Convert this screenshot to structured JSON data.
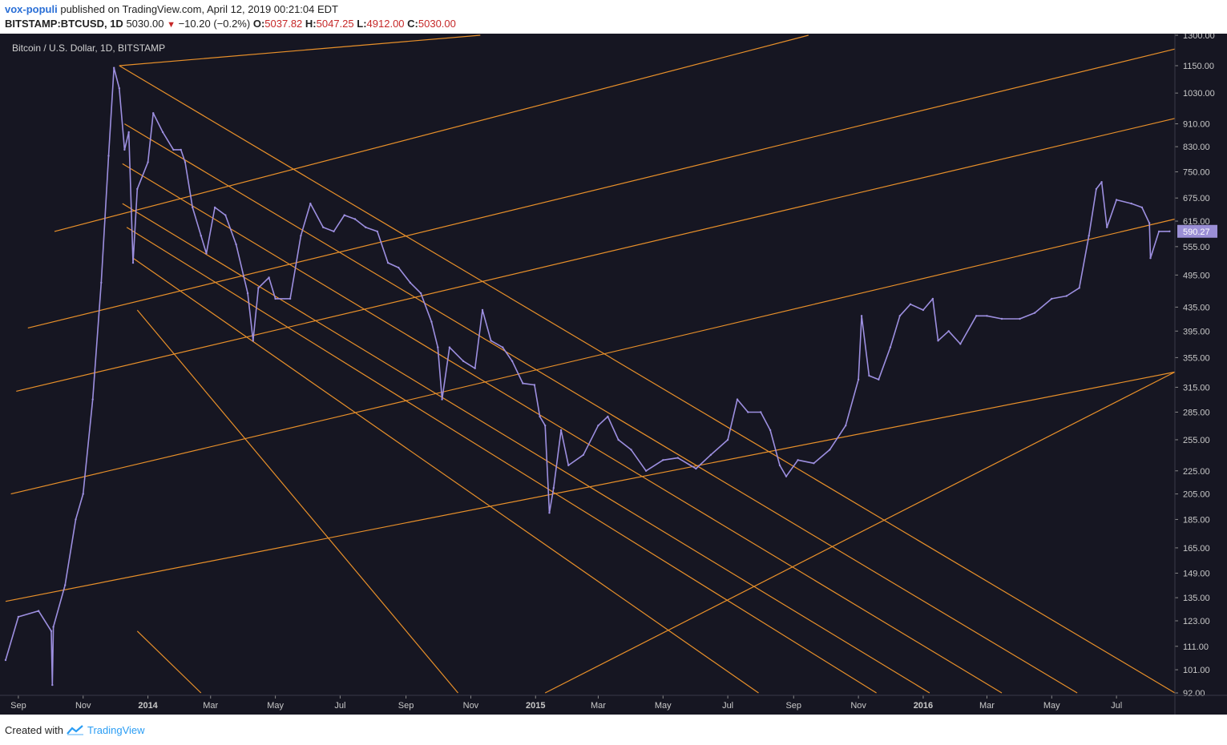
{
  "header": {
    "author": "vox-populi",
    "published_text": "published on TradingView.com, April 12, 2019 00:21:04 EDT",
    "symbol": "BITSTAMP:BTCUSD, 1D",
    "last": "5030.00",
    "change": "−10.20 (−0.2%)",
    "o_label": "O:",
    "o_value": "5037.82",
    "h_label": "H:",
    "h_value": "5047.25",
    "l_label": "L:",
    "l_value": "4912.00",
    "c_label": "C:",
    "c_value": "5030.00"
  },
  "footer": {
    "created_with": "Created with",
    "brand": "TradingView"
  },
  "colors": {
    "background": "#161622",
    "candle": "#9d8fe0",
    "trendline": "#e8902a",
    "price_tag": "#9b8fd6",
    "axis_text": "#c8c8c8"
  },
  "chart_data": {
    "type": "line",
    "title": "Bitcoin / U.S. Dollar, 1D, BITSTAMP",
    "x_tick_labels": [
      "Sep",
      "Nov",
      "2014",
      "Mar",
      "May",
      "Jul",
      "Sep",
      "Nov",
      "2015",
      "Mar",
      "May",
      "Jul",
      "Sep",
      "Nov",
      "2016",
      "Mar",
      "May",
      "Jul"
    ],
    "x_tick_dates": [
      "2013-09-01",
      "2013-11-01",
      "2014-01-01",
      "2014-03-01",
      "2014-05-01",
      "2014-07-01",
      "2014-09-01",
      "2014-11-01",
      "2015-01-01",
      "2015-03-01",
      "2015-05-01",
      "2015-07-01",
      "2015-09-01",
      "2015-11-01",
      "2016-01-01",
      "2016-03-01",
      "2016-05-01",
      "2016-07-01"
    ],
    "y_scale": "log",
    "y_tick_labels": [
      "1300.00",
      "1150.00",
      "1030.00",
      "910.00",
      "830.00",
      "750.00",
      "675.00",
      "615.00",
      "555.00",
      "495.00",
      "435.00",
      "395.00",
      "355.00",
      "315.00",
      "285.00",
      "255.00",
      "225.00",
      "205.00",
      "185.00",
      "165.00",
      "149.00",
      "135.00",
      "123.00",
      "111.00",
      "101.00",
      "92.00"
    ],
    "ylim": [
      92,
      1300
    ],
    "xlim": [
      "2013-08-20",
      "2016-08-25"
    ],
    "last_price_label": "590.27",
    "grid": false,
    "series": [
      {
        "points": [
          [
            "2013-08-20",
            105
          ],
          [
            "2013-09-01",
            125
          ],
          [
            "2013-09-20",
            128
          ],
          [
            "2013-10-02",
            118
          ],
          [
            "2013-10-03",
            95
          ],
          [
            "2013-10-04",
            120
          ],
          [
            "2013-10-15",
            142
          ],
          [
            "2013-10-25",
            185
          ],
          [
            "2013-11-01",
            205
          ],
          [
            "2013-11-10",
            300
          ],
          [
            "2013-11-18",
            480
          ],
          [
            "2013-11-25",
            800
          ],
          [
            "2013-11-30",
            1140
          ],
          [
            "2013-12-05",
            1050
          ],
          [
            "2013-12-10",
            820
          ],
          [
            "2013-12-14",
            880
          ],
          [
            "2013-12-18",
            520
          ],
          [
            "2013-12-22",
            700
          ],
          [
            "2014-01-01",
            780
          ],
          [
            "2014-01-06",
            950
          ],
          [
            "2014-01-15",
            880
          ],
          [
            "2014-01-25",
            820
          ],
          [
            "2014-02-01",
            820
          ],
          [
            "2014-02-05",
            780
          ],
          [
            "2014-02-12",
            650
          ],
          [
            "2014-02-20",
            580
          ],
          [
            "2014-02-25",
            540
          ],
          [
            "2014-03-05",
            650
          ],
          [
            "2014-03-15",
            630
          ],
          [
            "2014-03-25",
            560
          ],
          [
            "2014-04-05",
            460
          ],
          [
            "2014-04-10",
            380
          ],
          [
            "2014-04-15",
            470
          ],
          [
            "2014-04-25",
            490
          ],
          [
            "2014-05-01",
            450
          ],
          [
            "2014-05-15",
            450
          ],
          [
            "2014-05-25",
            580
          ],
          [
            "2014-06-03",
            660
          ],
          [
            "2014-06-15",
            600
          ],
          [
            "2014-06-25",
            590
          ],
          [
            "2014-07-05",
            630
          ],
          [
            "2014-07-15",
            620
          ],
          [
            "2014-07-25",
            600
          ],
          [
            "2014-08-05",
            590
          ],
          [
            "2014-08-15",
            520
          ],
          [
            "2014-08-25",
            510
          ],
          [
            "2014-09-05",
            480
          ],
          [
            "2014-09-15",
            460
          ],
          [
            "2014-09-25",
            410
          ],
          [
            "2014-10-01",
            370
          ],
          [
            "2014-10-05",
            300
          ],
          [
            "2014-10-12",
            370
          ],
          [
            "2014-10-25",
            350
          ],
          [
            "2014-11-05",
            340
          ],
          [
            "2014-11-12",
            430
          ],
          [
            "2014-11-20",
            380
          ],
          [
            "2014-12-01",
            370
          ],
          [
            "2014-12-10",
            350
          ],
          [
            "2014-12-20",
            320
          ],
          [
            "2014-12-31",
            318
          ],
          [
            "2015-01-05",
            280
          ],
          [
            "2015-01-10",
            270
          ],
          [
            "2015-01-14",
            190
          ],
          [
            "2015-01-18",
            210
          ],
          [
            "2015-01-25",
            265
          ],
          [
            "2015-02-01",
            230
          ],
          [
            "2015-02-15",
            240
          ],
          [
            "2015-03-01",
            270
          ],
          [
            "2015-03-10",
            280
          ],
          [
            "2015-03-20",
            255
          ],
          [
            "2015-04-01",
            245
          ],
          [
            "2015-04-15",
            225
          ],
          [
            "2015-05-01",
            235
          ],
          [
            "2015-05-15",
            237
          ],
          [
            "2015-06-01",
            227
          ],
          [
            "2015-06-15",
            240
          ],
          [
            "2015-07-01",
            255
          ],
          [
            "2015-07-10",
            300
          ],
          [
            "2015-07-20",
            285
          ],
          [
            "2015-08-01",
            285
          ],
          [
            "2015-08-10",
            265
          ],
          [
            "2015-08-19",
            230
          ],
          [
            "2015-08-25",
            220
          ],
          [
            "2015-09-05",
            235
          ],
          [
            "2015-09-20",
            232
          ],
          [
            "2015-10-05",
            245
          ],
          [
            "2015-10-20",
            270
          ],
          [
            "2015-11-01",
            325
          ],
          [
            "2015-11-04",
            420
          ],
          [
            "2015-11-11",
            330
          ],
          [
            "2015-11-20",
            325
          ],
          [
            "2015-12-01",
            370
          ],
          [
            "2015-12-10",
            420
          ],
          [
            "2015-12-20",
            440
          ],
          [
            "2016-01-01",
            430
          ],
          [
            "2016-01-10",
            450
          ],
          [
            "2016-01-15",
            380
          ],
          [
            "2016-01-25",
            395
          ],
          [
            "2016-02-05",
            375
          ],
          [
            "2016-02-20",
            420
          ],
          [
            "2016-03-01",
            420
          ],
          [
            "2016-03-15",
            415
          ],
          [
            "2016-04-01",
            415
          ],
          [
            "2016-04-15",
            425
          ],
          [
            "2016-05-01",
            450
          ],
          [
            "2016-05-15",
            455
          ],
          [
            "2016-05-27",
            470
          ],
          [
            "2016-06-05",
            580
          ],
          [
            "2016-06-12",
            700
          ],
          [
            "2016-06-17",
            720
          ],
          [
            "2016-06-22",
            600
          ],
          [
            "2016-07-01",
            670
          ],
          [
            "2016-07-15",
            660
          ],
          [
            "2016-07-25",
            650
          ],
          [
            "2016-08-01",
            610
          ],
          [
            "2016-08-02",
            530
          ],
          [
            "2016-08-10",
            590
          ],
          [
            "2016-08-20",
            590.27
          ]
        ]
      }
    ],
    "trendlines": [
      [
        [
          "2013-12-05",
          1150
        ],
        [
          "2016-08-25",
          92
        ]
      ],
      [
        [
          "2013-12-10",
          910
        ],
        [
          "2016-05-25",
          92
        ]
      ],
      [
        [
          "2013-12-08",
          775
        ],
        [
          "2016-03-15",
          92
        ]
      ],
      [
        [
          "2013-12-08",
          660
        ],
        [
          "2016-01-07",
          92
        ]
      ],
      [
        [
          "2013-12-12",
          600
        ],
        [
          "2015-11-18",
          92
        ]
      ],
      [
        [
          "2013-12-18",
          530
        ],
        [
          "2015-07-30",
          92
        ]
      ],
      [
        [
          "2013-12-22",
          430
        ],
        [
          "2014-10-20",
          92
        ]
      ],
      [
        [
          "2013-12-22",
          118
        ],
        [
          "2014-02-20",
          92
        ]
      ],
      [
        [
          "2013-12-05",
          1150
        ],
        [
          "2014-11-10",
          1300
        ]
      ],
      [
        [
          "2013-10-05",
          590
        ],
        [
          "2015-09-15",
          1300
        ]
      ],
      [
        [
          "2013-09-10",
          400
        ],
        [
          "2016-08-25",
          1230
        ]
      ],
      [
        [
          "2013-08-30",
          310
        ],
        [
          "2016-08-25",
          930
        ]
      ],
      [
        [
          "2013-08-25",
          205
        ],
        [
          "2016-08-25",
          620
        ]
      ],
      [
        [
          "2013-08-20",
          133
        ],
        [
          "2016-08-25",
          335
        ]
      ],
      [
        [
          "2015-01-10",
          92
        ],
        [
          "2016-08-25",
          335
        ]
      ]
    ]
  }
}
